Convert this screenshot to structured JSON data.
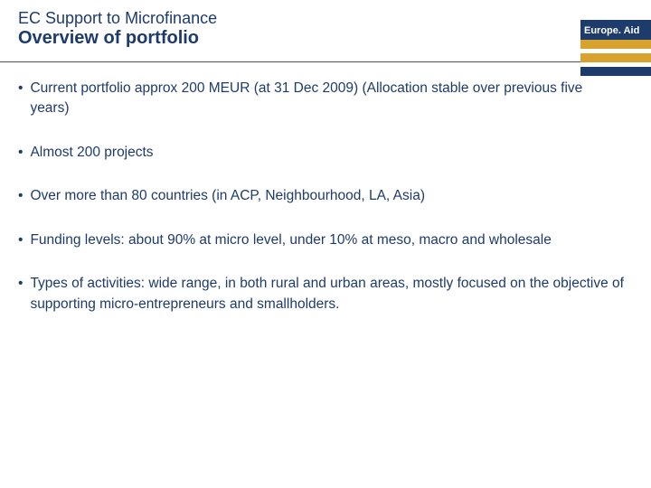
{
  "header": {
    "line1": "EC Support to Microfinance",
    "line2": "Overview of portfolio"
  },
  "logo": {
    "text": "Europe. Aid",
    "bar_gold_color": "#d8a22e",
    "bar_blue_color": "#1d3b6b"
  },
  "bullets": [
    "Current portfolio approx 200 MEUR (at 31 Dec 2009) (Allocation stable over previous five years)",
    "Almost 200 projects",
    "Over more than 80 countries\n(in ACP, Neighbourhood, LA, Asia)",
    "Funding levels: about 90% at micro level, under 10% at meso, macro and wholesale",
    "Types of activities: wide range, in both rural and urban areas, mostly focused on the objective of supporting micro-entrepreneurs and smallholders."
  ],
  "colors": {
    "text": "#1d3b6b",
    "background": "#ffffff",
    "divider": "#555555"
  }
}
